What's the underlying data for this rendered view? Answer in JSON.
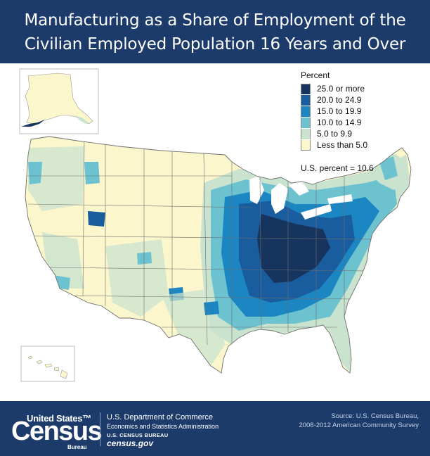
{
  "title_line1": "Manufacturing as a Share of Employment of the",
  "title_line2": "Civilian Employed Population 16 Years and Over",
  "legend": {
    "title": "Percent",
    "classes": [
      {
        "label": "25.0 or more",
        "color": "#17345e"
      },
      {
        "label": "20.0 to 24.9",
        "color": "#1a5d9e"
      },
      {
        "label": "15.0 to 19.9",
        "color": "#1c86c2"
      },
      {
        "label": "10.0 to 14.9",
        "color": "#6dc2d0"
      },
      {
        "label": "5.0 to 9.9",
        "color": "#c9e3cf"
      },
      {
        "label": "Less than 5.0",
        "color": "#fbf6cc"
      }
    ]
  },
  "us_percent": "U.S. percent = 10.6",
  "footer": {
    "logo_line1": "United States™",
    "logo_line2": "Census",
    "logo_line3": "Bureau",
    "dept": "U.S. Department of Commerce",
    "esa": "Economics and Statistics Administration",
    "bureau": "U.S. CENSUS BUREAU",
    "site": "census.gov",
    "source_line1": "Source: U.S. Census Bureau,",
    "source_line2": "2008-2012 American Community Survey"
  },
  "colors": {
    "navy": "#1c3b6a",
    "border": "#8a8a8a"
  }
}
